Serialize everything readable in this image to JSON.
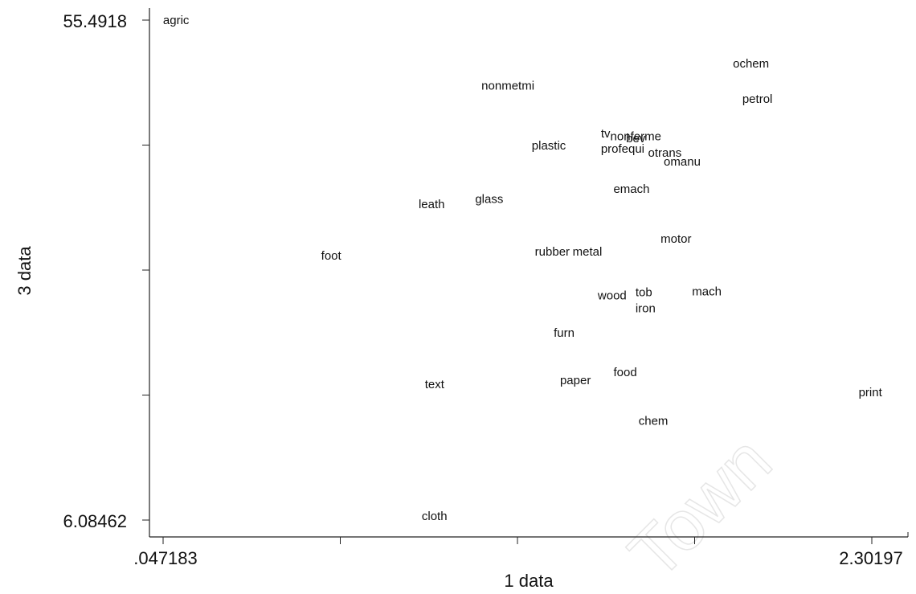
{
  "chart_data": {
    "type": "scatter",
    "xlabel": "1 data",
    "ylabel": "3 data",
    "xlim": [
      0.047183,
      2.30197
    ],
    "ylim": [
      6.08462,
      55.4918
    ],
    "x_tick_labels": [
      ".047183",
      "2.30197"
    ],
    "y_tick_labels": [
      "55.4918",
      "6.08462"
    ],
    "grid": false,
    "points": [
      {
        "label": "agric",
        "x": 0.047,
        "y": 55.5
      },
      {
        "label": "ochem",
        "x": 1.86,
        "y": 51.2
      },
      {
        "label": "nonmetmi",
        "x": 1.06,
        "y": 49.0
      },
      {
        "label": "petrol",
        "x": 1.89,
        "y": 47.7
      },
      {
        "label": "tv",
        "x": 1.44,
        "y": 44.3
      },
      {
        "label": "nonferme",
        "x": 1.47,
        "y": 44.0
      },
      {
        "label": "bev",
        "x": 1.52,
        "y": 43.8
      },
      {
        "label": "plastic",
        "x": 1.22,
        "y": 43.1
      },
      {
        "label": "profequi",
        "x": 1.44,
        "y": 42.8
      },
      {
        "label": "otrans",
        "x": 1.59,
        "y": 42.4
      },
      {
        "label": "omanu",
        "x": 1.64,
        "y": 41.5
      },
      {
        "label": "emach",
        "x": 1.48,
        "y": 38.8
      },
      {
        "label": "glass",
        "x": 1.04,
        "y": 37.8
      },
      {
        "label": "leath",
        "x": 0.86,
        "y": 37.3
      },
      {
        "label": "motor",
        "x": 1.63,
        "y": 33.9
      },
      {
        "label": "rubber",
        "x": 1.23,
        "y": 32.6
      },
      {
        "label": "metal",
        "x": 1.35,
        "y": 32.6
      },
      {
        "label": "foot",
        "x": 0.55,
        "y": 32.2
      },
      {
        "label": "tob",
        "x": 1.55,
        "y": 28.6
      },
      {
        "label": "mach",
        "x": 1.73,
        "y": 28.7
      },
      {
        "label": "wood",
        "x": 1.43,
        "y": 28.3
      },
      {
        "label": "iron",
        "x": 1.55,
        "y": 27.0
      },
      {
        "label": "furn",
        "x": 1.29,
        "y": 24.6
      },
      {
        "label": "food",
        "x": 1.48,
        "y": 20.7
      },
      {
        "label": "paper",
        "x": 1.31,
        "y": 19.9
      },
      {
        "label": "text",
        "x": 0.88,
        "y": 19.5
      },
      {
        "label": "print",
        "x": 2.26,
        "y": 18.7
      },
      {
        "label": "chem",
        "x": 1.56,
        "y": 15.9
      },
      {
        "label": "cloth",
        "x": 0.87,
        "y": 6.5
      }
    ]
  },
  "watermark": "Town"
}
